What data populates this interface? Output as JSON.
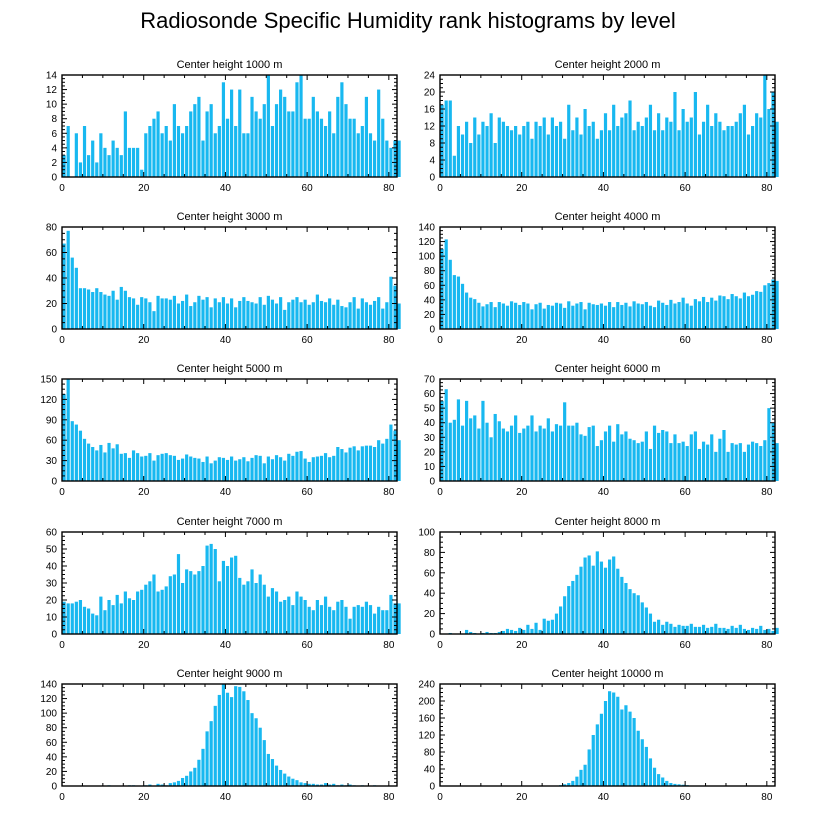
{
  "title": "Radiosonde Specific Humidity rank histograms by level",
  "bar_color": "#18b8f0",
  "chart_data": [
    {
      "type": "bar",
      "title": "Center height 1000 m",
      "xlim": [
        0,
        82
      ],
      "ylim": [
        0,
        14
      ],
      "xticks": [
        0,
        20,
        40,
        60,
        80
      ],
      "yticks": [
        0,
        2,
        4,
        6,
        8,
        10,
        12,
        14
      ],
      "values": [
        3,
        7,
        0,
        6,
        2,
        7,
        3,
        5,
        2,
        6,
        4,
        3,
        5,
        4,
        3,
        9,
        4,
        4,
        4,
        1,
        6,
        7,
        8,
        9,
        6,
        7,
        5,
        10,
        7,
        6,
        7,
        9,
        10,
        11,
        5,
        9,
        10,
        6,
        7,
        13,
        8,
        12,
        7,
        12,
        6,
        6,
        11,
        9,
        8,
        10,
        14,
        7,
        10,
        12,
        11,
        9,
        9,
        13,
        14,
        8,
        8,
        11,
        9,
        8,
        7,
        9,
        6,
        11,
        13,
        10,
        8,
        8,
        6,
        7,
        11,
        6,
        5,
        12,
        8,
        5,
        4,
        5,
        5
      ]
    },
    {
      "type": "bar",
      "title": "Center height 2000 m",
      "xlim": [
        0,
        82
      ],
      "ylim": [
        0,
        24
      ],
      "xticks": [
        0,
        20,
        40,
        60,
        80
      ],
      "yticks": [
        0,
        4,
        8,
        12,
        16,
        20,
        24
      ],
      "values": [
        17,
        18,
        18,
        5,
        12,
        10,
        13,
        8,
        14,
        10,
        13,
        12,
        15,
        8,
        14,
        13,
        12,
        11,
        12,
        10,
        12,
        13,
        9,
        13,
        12,
        14,
        10,
        14,
        12,
        13,
        9,
        17,
        11,
        14,
        10,
        16,
        12,
        13,
        9,
        11,
        15,
        11,
        17,
        12,
        14,
        15,
        18,
        11,
        13,
        12,
        14,
        17,
        11,
        15,
        11,
        14,
        13,
        20,
        11,
        16,
        13,
        14,
        20,
        10,
        13,
        17,
        12,
        15,
        13,
        11,
        12,
        12,
        13,
        15,
        17,
        10,
        12,
        15,
        14,
        24,
        16,
        20,
        13
      ]
    },
    {
      "type": "bar",
      "title": "Center height 3000 m",
      "xlim": [
        0,
        82
      ],
      "ylim": [
        0,
        80
      ],
      "xticks": [
        0,
        20,
        40,
        60,
        80
      ],
      "yticks": [
        0,
        20,
        40,
        60,
        80
      ],
      "values": [
        67,
        77,
        56,
        48,
        32,
        32,
        31,
        29,
        32,
        29,
        27,
        26,
        30,
        23,
        33,
        30,
        25,
        24,
        19,
        25,
        24,
        21,
        14,
        26,
        24,
        24,
        23,
        26,
        20,
        22,
        27,
        18,
        21,
        26,
        23,
        25,
        17,
        24,
        21,
        25,
        20,
        24,
        17,
        22,
        25,
        22,
        21,
        20,
        25,
        19,
        26,
        23,
        20,
        25,
        15,
        21,
        23,
        25,
        21,
        23,
        19,
        21,
        27,
        22,
        21,
        24,
        19,
        23,
        18,
        17,
        21,
        25,
        16,
        24,
        21,
        19,
        22,
        25,
        16,
        21,
        41,
        34,
        20
      ]
    },
    {
      "type": "bar",
      "title": "Center height 4000 m",
      "xlim": [
        0,
        82
      ],
      "ylim": [
        0,
        140
      ],
      "xticks": [
        0,
        20,
        40,
        60,
        80
      ],
      "yticks": [
        0,
        20,
        40,
        60,
        80,
        100,
        120,
        140
      ],
      "values": [
        110,
        123,
        95,
        74,
        72,
        62,
        50,
        43,
        41,
        36,
        31,
        34,
        37,
        30,
        37,
        35,
        32,
        38,
        36,
        33,
        37,
        35,
        27,
        34,
        36,
        28,
        33,
        32,
        36,
        35,
        29,
        38,
        32,
        35,
        37,
        27,
        36,
        34,
        33,
        35,
        32,
        37,
        30,
        37,
        33,
        36,
        31,
        38,
        35,
        34,
        37,
        32,
        30,
        39,
        36,
        33,
        40,
        35,
        37,
        43,
        35,
        32,
        41,
        38,
        44,
        37,
        43,
        39,
        46,
        45,
        41,
        48,
        45,
        42,
        50,
        45,
        47,
        52,
        51,
        60,
        63,
        68,
        66
      ]
    },
    {
      "type": "bar",
      "title": "Center height 5000 m",
      "xlim": [
        0,
        82
      ],
      "ylim": [
        0,
        150
      ],
      "xticks": [
        0,
        20,
        40,
        60,
        80
      ],
      "yticks": [
        0,
        30,
        60,
        90,
        120,
        150
      ],
      "values": [
        128,
        150,
        88,
        83,
        74,
        62,
        55,
        50,
        45,
        53,
        42,
        56,
        48,
        54,
        40,
        41,
        34,
        45,
        41,
        36,
        37,
        41,
        30,
        38,
        40,
        41,
        38,
        37,
        31,
        33,
        39,
        36,
        34,
        33,
        28,
        36,
        26,
        30,
        35,
        34,
        31,
        36,
        30,
        32,
        35,
        29,
        34,
        38,
        37,
        26,
        36,
        32,
        38,
        35,
        30,
        40,
        37,
        43,
        44,
        33,
        28,
        35,
        36,
        37,
        41,
        35,
        37,
        50,
        47,
        42,
        49,
        51,
        45,
        51,
        52,
        52,
        50,
        60,
        55,
        62,
        83,
        74,
        60
      ]
    },
    {
      "type": "bar",
      "title": "Center height 6000 m",
      "xlim": [
        0,
        82
      ],
      "ylim": [
        0,
        70
      ],
      "xticks": [
        0,
        20,
        40,
        60,
        80
      ],
      "yticks": [
        0,
        10,
        20,
        30,
        40,
        50,
        60,
        70
      ],
      "values": [
        55,
        63,
        40,
        42,
        56,
        38,
        55,
        43,
        45,
        36,
        55,
        40,
        30,
        46,
        41,
        36,
        34,
        38,
        45,
        33,
        36,
        38,
        45,
        34,
        38,
        36,
        43,
        34,
        39,
        38,
        54,
        38,
        38,
        40,
        32,
        31,
        37,
        38,
        24,
        28,
        34,
        38,
        27,
        39,
        32,
        34,
        29,
        28,
        26,
        27,
        34,
        22,
        38,
        33,
        35,
        34,
        26,
        32,
        26,
        27,
        24,
        32,
        34,
        22,
        27,
        25,
        32,
        20,
        29,
        35,
        20,
        26,
        25,
        26,
        20,
        25,
        27,
        26,
        24,
        28,
        50,
        40,
        26
      ]
    },
    {
      "type": "bar",
      "title": "Center height 7000 m",
      "xlim": [
        0,
        82
      ],
      "ylim": [
        0,
        60
      ],
      "xticks": [
        0,
        20,
        40,
        60,
        80
      ],
      "yticks": [
        0,
        10,
        20,
        30,
        40,
        50,
        60
      ],
      "values": [
        19,
        18,
        18,
        19,
        20,
        16,
        15,
        12,
        11,
        22,
        14,
        20,
        17,
        23,
        18,
        25,
        21,
        20,
        25,
        26,
        29,
        31,
        35,
        25,
        26,
        28,
        34,
        35,
        47,
        30,
        38,
        37,
        35,
        37,
        40,
        52,
        53,
        50,
        31,
        43,
        40,
        45,
        46,
        33,
        29,
        31,
        38,
        30,
        35,
        29,
        22,
        27,
        25,
        19,
        20,
        22,
        17,
        25,
        22,
        20,
        16,
        14,
        20,
        17,
        22,
        16,
        14,
        19,
        20,
        16,
        9,
        16,
        17,
        16,
        19,
        17,
        12,
        16,
        14,
        14,
        23,
        18,
        18
      ]
    },
    {
      "type": "bar",
      "title": "Center height 8000 m",
      "xlim": [
        0,
        82
      ],
      "ylim": [
        0,
        100
      ],
      "xticks": [
        0,
        20,
        40,
        60,
        80
      ],
      "yticks": [
        0,
        20,
        40,
        60,
        80,
        100
      ],
      "values": [
        0,
        0,
        1,
        0,
        0,
        0,
        4,
        2,
        1,
        0,
        1,
        2,
        1,
        1,
        2,
        3,
        5,
        4,
        3,
        6,
        4,
        9,
        5,
        11,
        4,
        15,
        13,
        14,
        20,
        27,
        37,
        47,
        52,
        58,
        66,
        75,
        77,
        67,
        81,
        71,
        65,
        73,
        76,
        64,
        56,
        50,
        44,
        40,
        38,
        31,
        26,
        20,
        12,
        14,
        9,
        12,
        10,
        7,
        9,
        8,
        8,
        10,
        7,
        7,
        9,
        6,
        7,
        10,
        6,
        6,
        5,
        8,
        6,
        9,
        5,
        4,
        6,
        5,
        8,
        4,
        5,
        3,
        6
      ]
    },
    {
      "type": "bar",
      "title": "Center height 9000 m",
      "xlim": [
        0,
        82
      ],
      "ylim": [
        0,
        140
      ],
      "xticks": [
        0,
        20,
        40,
        60,
        80
      ],
      "yticks": [
        0,
        20,
        40,
        60,
        80,
        100,
        120,
        140
      ],
      "values": [
        0,
        0,
        0,
        0,
        0,
        0,
        0,
        0,
        0,
        0,
        0,
        1,
        0,
        0,
        0,
        0,
        1,
        1,
        0,
        0,
        1,
        2,
        0,
        3,
        2,
        1,
        4,
        5,
        7,
        11,
        14,
        20,
        25,
        36,
        51,
        75,
        89,
        110,
        125,
        140,
        128,
        122,
        137,
        136,
        130,
        118,
        100,
        93,
        80,
        63,
        44,
        37,
        28,
        22,
        17,
        13,
        10,
        8,
        5,
        4,
        3,
        3,
        2,
        2,
        4,
        2,
        3,
        1,
        2,
        1,
        2,
        1,
        0,
        1,
        0,
        0,
        1,
        0,
        0,
        0,
        0,
        0,
        0
      ]
    },
    {
      "type": "bar",
      "title": "Center height 10000 m",
      "xlim": [
        0,
        82
      ],
      "ylim": [
        0,
        240
      ],
      "xticks": [
        0,
        20,
        40,
        60,
        80
      ],
      "yticks": [
        0,
        40,
        80,
        120,
        160,
        200,
        240
      ],
      "values": [
        0,
        0,
        0,
        0,
        0,
        0,
        0,
        0,
        0,
        0,
        0,
        0,
        0,
        0,
        0,
        0,
        0,
        0,
        0,
        0,
        0,
        0,
        0,
        0,
        0,
        0,
        0,
        1,
        0,
        2,
        4,
        7,
        12,
        22,
        38,
        50,
        86,
        120,
        145,
        170,
        200,
        223,
        220,
        210,
        180,
        190,
        175,
        160,
        130,
        110,
        92,
        65,
        43,
        28,
        20,
        12,
        7,
        5,
        4,
        3,
        2,
        1,
        1,
        1,
        1,
        0,
        0,
        0,
        0,
        0,
        0,
        0,
        0,
        0,
        0,
        0,
        1,
        0,
        0,
        0,
        0,
        0,
        0
      ]
    }
  ]
}
